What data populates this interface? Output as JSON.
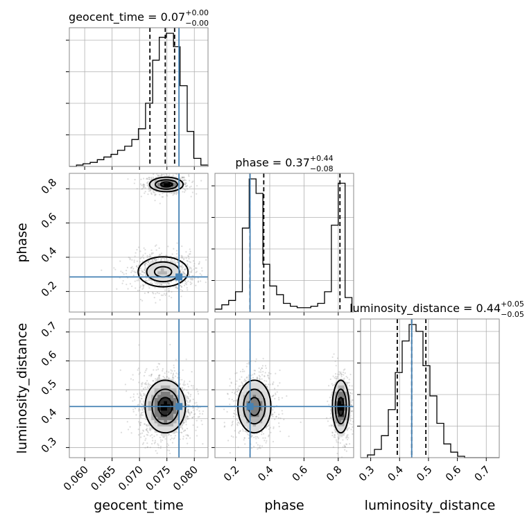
{
  "chart_data": {
    "type": "corner",
    "grid": true,
    "parameters": [
      "geocent_time",
      "phase",
      "luminosity_distance"
    ],
    "truth_color": "#4682b4",
    "truths": {
      "geocent_time": 0.0772,
      "phase": 0.285,
      "luminosity_distance": 0.442
    },
    "axes": {
      "geocent_time": {
        "label": "geocent_time",
        "range": [
          0.0572,
          0.0825
        ],
        "ticks": [
          0.06,
          0.065,
          0.07,
          0.075,
          0.08
        ],
        "tick_labels": [
          "0.060",
          "0.065",
          "0.070",
          "0.075",
          "0.080"
        ]
      },
      "phase": {
        "label": "phase",
        "range": [
          0.08,
          0.89
        ],
        "ticks": [
          0.2,
          0.4,
          0.6,
          0.8
        ],
        "tick_labels": [
          "0.2",
          "0.4",
          "0.6",
          "0.8"
        ]
      },
      "luminosity_distance": {
        "label": "luminosity_distance",
        "range": [
          0.265,
          0.745
        ],
        "ticks": [
          0.3,
          0.4,
          0.5,
          0.6,
          0.7
        ],
        "tick_labels": [
          "0.3",
          "0.4",
          "0.5",
          "0.6",
          "0.7"
        ]
      }
    },
    "marginals": [
      {
        "param": "geocent_time",
        "title": {
          "prefix": "geocent_time = ",
          "median": "0.07",
          "plus": "+0.00",
          "minus": "−0.00"
        },
        "quantiles": [
          0.0719,
          0.0747,
          0.0764
        ],
        "hist_edges": [
          0.0572,
          0.0585,
          0.0597,
          0.061,
          0.0623,
          0.0635,
          0.0648,
          0.066,
          0.0673,
          0.0686,
          0.0698,
          0.0711,
          0.0724,
          0.0736,
          0.0749,
          0.0762,
          0.0774,
          0.0787,
          0.0799,
          0.0812,
          0.0825
        ],
        "hist_counts": [
          0,
          1,
          2,
          3,
          5,
          7,
          9,
          12,
          15,
          20,
          28,
          47,
          79,
          96,
          99,
          89,
          60,
          26,
          6,
          1
        ]
      },
      {
        "param": "phase",
        "title": {
          "prefix": "phase = ",
          "median": "0.37",
          "plus": "+0.44",
          "minus": "−0.08"
        },
        "quantiles": [
          0.285,
          0.365,
          0.81
        ],
        "hist_edges": [
          0.08,
          0.12,
          0.16,
          0.2,
          0.24,
          0.28,
          0.32,
          0.36,
          0.4,
          0.44,
          0.48,
          0.52,
          0.56,
          0.6,
          0.64,
          0.68,
          0.72,
          0.76,
          0.8,
          0.84,
          0.88
        ],
        "hist_counts": [
          2,
          5,
          8,
          14,
          58,
          92,
          82,
          33,
          18,
          12,
          6,
          4,
          3,
          3,
          4,
          6,
          14,
          60,
          89,
          10
        ]
      },
      {
        "param": "luminosity_distance",
        "title": {
          "prefix": "luminosity_distance = ",
          "median": "0.44",
          "plus": "+0.05",
          "minus": "−0.05"
        },
        "quantiles": [
          0.392,
          0.442,
          0.491
        ],
        "hist_edges": [
          0.265,
          0.289,
          0.313,
          0.337,
          0.361,
          0.385,
          0.409,
          0.433,
          0.457,
          0.481,
          0.505,
          0.529,
          0.553,
          0.577,
          0.601,
          0.625,
          0.649,
          0.673,
          0.697,
          0.721,
          0.745
        ],
        "hist_counts": [
          0,
          2,
          6,
          16,
          35,
          62,
          85,
          97,
          92,
          67,
          45,
          25,
          10,
          4,
          1,
          0,
          0,
          0,
          0,
          0
        ]
      }
    ],
    "density_panels": [
      {
        "x": "geocent_time",
        "y": "phase",
        "modes": [
          {
            "cx": 0.0749,
            "cy": 0.825,
            "sx": 0.00175,
            "sy": 0.024,
            "w": 0.45
          },
          {
            "cx": 0.0743,
            "cy": 0.315,
            "sx": 0.0026,
            "sy": 0.05,
            "w": 0.55
          }
        ]
      },
      {
        "x": "geocent_time",
        "y": "luminosity_distance",
        "modes": [
          {
            "cx": 0.0747,
            "cy": 0.442,
            "sx": 0.0021,
            "sy": 0.052,
            "w": 1.0
          }
        ]
      },
      {
        "x": "phase",
        "y": "luminosity_distance",
        "modes": [
          {
            "cx": 0.31,
            "cy": 0.442,
            "sx": 0.055,
            "sy": 0.052,
            "w": 0.6
          },
          {
            "cx": 0.815,
            "cy": 0.442,
            "sx": 0.028,
            "sy": 0.052,
            "w": 0.4
          }
        ]
      }
    ]
  }
}
